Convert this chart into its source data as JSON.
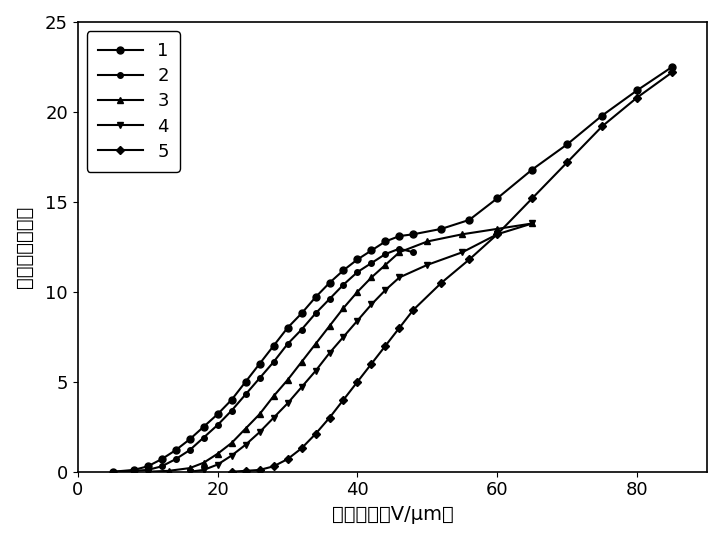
{
  "series": [
    {
      "label": "1",
      "marker": "o",
      "markersize": 5,
      "x": [
        5,
        8,
        10,
        12,
        14,
        16,
        18,
        20,
        22,
        24,
        26,
        28,
        30,
        32,
        34,
        36,
        38,
        40,
        42,
        44,
        46,
        48,
        52,
        56,
        60,
        65,
        70,
        75,
        80,
        85
      ],
      "y": [
        0,
        0.1,
        0.3,
        0.7,
        1.2,
        1.8,
        2.5,
        3.2,
        4.0,
        5.0,
        6.0,
        7.0,
        8.0,
        8.8,
        9.7,
        10.5,
        11.2,
        11.8,
        12.3,
        12.8,
        13.1,
        13.2,
        13.5,
        14.0,
        15.2,
        16.8,
        18.2,
        19.8,
        21.2,
        22.5
      ]
    },
    {
      "label": "2",
      "marker": "o",
      "markersize": 4,
      "x": [
        5,
        8,
        10,
        12,
        14,
        16,
        18,
        20,
        22,
        24,
        26,
        28,
        30,
        32,
        34,
        36,
        38,
        40,
        42,
        44,
        46,
        48
      ],
      "y": [
        0,
        0.05,
        0.1,
        0.3,
        0.7,
        1.2,
        1.9,
        2.6,
        3.4,
        4.3,
        5.2,
        6.1,
        7.1,
        7.9,
        8.8,
        9.6,
        10.4,
        11.1,
        11.6,
        12.1,
        12.4,
        12.2
      ]
    },
    {
      "label": "3",
      "marker": "^",
      "markersize": 5,
      "x": [
        10,
        13,
        16,
        18,
        20,
        22,
        24,
        26,
        28,
        30,
        32,
        34,
        36,
        38,
        40,
        42,
        44,
        46,
        50,
        55,
        60,
        65
      ],
      "y": [
        0,
        0.05,
        0.2,
        0.5,
        1.0,
        1.6,
        2.4,
        3.2,
        4.2,
        5.1,
        6.1,
        7.1,
        8.1,
        9.1,
        10.0,
        10.8,
        11.5,
        12.2,
        12.8,
        13.2,
        13.5,
        13.8
      ]
    },
    {
      "label": "4",
      "marker": "v",
      "markersize": 5,
      "x": [
        16,
        18,
        20,
        22,
        24,
        26,
        28,
        30,
        32,
        34,
        36,
        38,
        40,
        42,
        44,
        46,
        50,
        55,
        60,
        65
      ],
      "y": [
        0,
        0.1,
        0.4,
        0.9,
        1.5,
        2.2,
        3.0,
        3.8,
        4.7,
        5.6,
        6.6,
        7.5,
        8.4,
        9.3,
        10.1,
        10.8,
        11.5,
        12.2,
        13.2,
        13.8
      ]
    },
    {
      "label": "5",
      "marker": "D",
      "markersize": 4,
      "x": [
        22,
        24,
        26,
        28,
        30,
        32,
        34,
        36,
        38,
        40,
        42,
        44,
        46,
        48,
        52,
        56,
        60,
        65,
        70,
        75,
        80,
        85
      ],
      "y": [
        0,
        0.05,
        0.1,
        0.3,
        0.7,
        1.3,
        2.1,
        3.0,
        4.0,
        5.0,
        6.0,
        7.0,
        8.0,
        9.0,
        10.5,
        11.8,
        13.2,
        15.2,
        17.2,
        19.2,
        20.8,
        22.2
      ]
    }
  ],
  "xlabel": "电场强度（V/μm）",
  "ylabel": "（％）面积形变",
  "ylabel_parts": [
    "（％）",
    "面积形变"
  ],
  "xlim": [
    0,
    90
  ],
  "ylim": [
    0,
    25
  ],
  "xticks": [
    0,
    20,
    40,
    60,
    80
  ],
  "yticks": [
    0,
    5,
    10,
    15,
    20,
    25
  ],
  "line_color": "#000000",
  "background_color": "#ffffff",
  "legend_loc": "upper left",
  "label_fontsize": 14,
  "tick_fontsize": 13,
  "legend_fontsize": 13,
  "linewidth": 1.5
}
